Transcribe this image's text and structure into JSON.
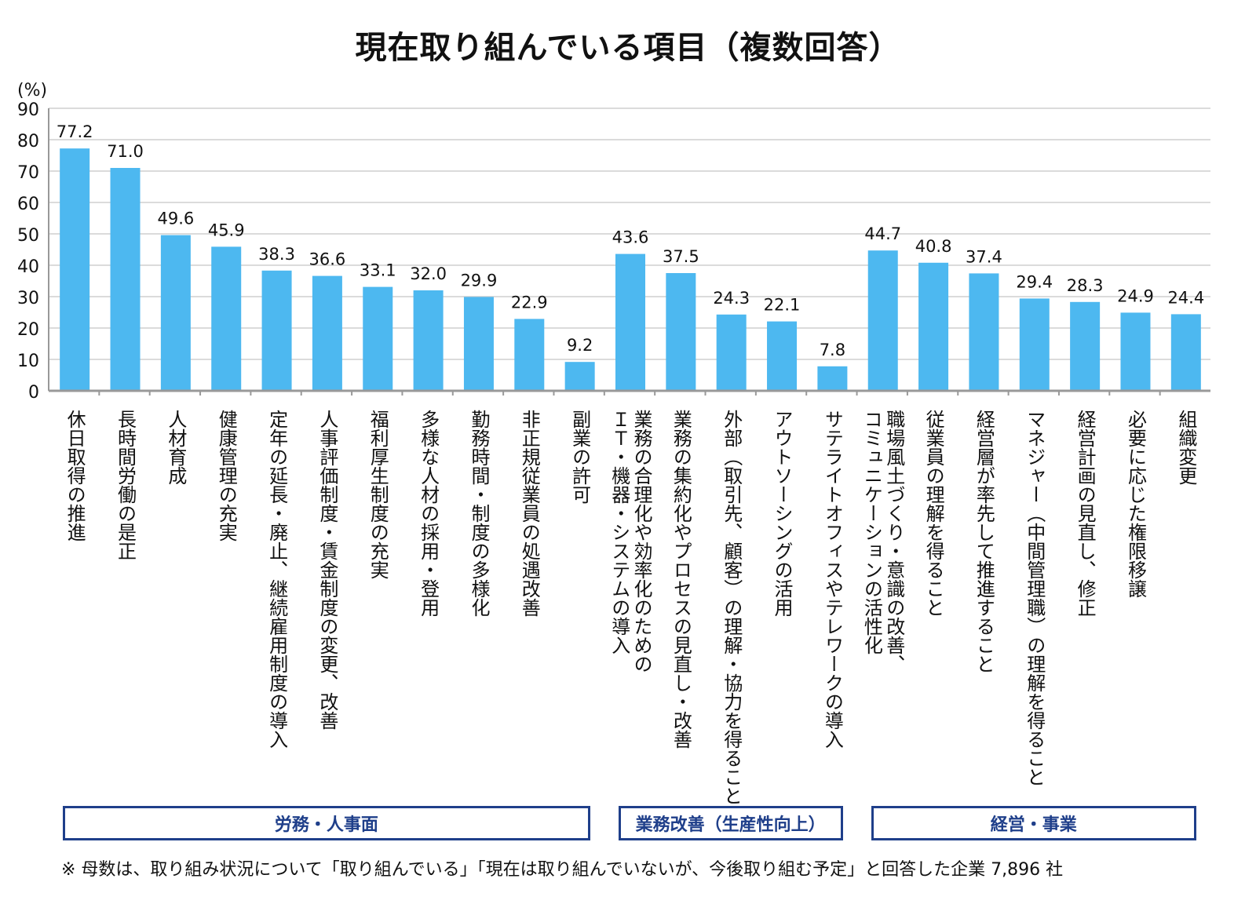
{
  "chart_data": {
    "type": "bar",
    "title": "現在取り組んでいる項目（複数回答）",
    "ylabel": "(%)",
    "ylim": [
      0,
      90
    ],
    "yticks": [
      "0",
      "10",
      "20",
      "30",
      "40",
      "50",
      "60",
      "70",
      "80",
      "90"
    ],
    "grid": true,
    "bar_color": "#4db8f0",
    "categories": [
      "休日取得の推進",
      "長時間労働の是正",
      "人材育成",
      "健康管理の充実",
      "定年の延長・廃止、継続雇用制度の導入",
      "人事評価制度・賃金制度の変更、改善",
      "福利厚生制度の充実",
      "多様な人材の採用・登用",
      "勤務時間・制度の多様化",
      "非正規従業員の処遇改善",
      "副業の許可",
      "業務の合理化や効率化のためのＩＴ・機器・システムの導入",
      "業務の集約化やプロセスの見直し・改善",
      "外部（取引先、顧客）の理解・協力を得ること",
      "アウトソーシングの活用",
      "サテライトオフィスやテレワークの導入",
      "職場風土づくり・意識の改善、コミュニケーションの活性化",
      "従業員の理解を得ること",
      "経営層が率先して推進すること",
      "マネジャー（中間管理職）の理解を得ること",
      "経営計画の見直し、修正",
      "必要に応じた権限移譲",
      "組織変更"
    ],
    "category_lines": [
      [
        "休日取得の推進"
      ],
      [
        "長時間労働の是正"
      ],
      [
        "人材育成"
      ],
      [
        "健康管理の充実"
      ],
      [
        "定年の延長・廃止、継続雇用制度の導入"
      ],
      [
        "人事評価制度・賃金制度の変更、改善"
      ],
      [
        "福利厚生制度の充実"
      ],
      [
        "多様な人材の採用・登用"
      ],
      [
        "勤務時間・制度の多様化"
      ],
      [
        "非正規従業員の処遇改善"
      ],
      [
        "副業の許可"
      ],
      [
        "業務の合理化や効率化のための",
        "ＩＴ・機器・システムの導入"
      ],
      [
        "業務の集約化やプロセスの見直し・改善"
      ],
      [
        "外部（取引先、顧客）の理解・協力を得ること"
      ],
      [
        "アウトソーシングの活用"
      ],
      [
        "サテライトオフィスやテレワークの導入"
      ],
      [
        "職場風土づくり・意識の改善、",
        "コミュニケーションの活性化"
      ],
      [
        "従業員の理解を得ること"
      ],
      [
        "経営層が率先して推進すること"
      ],
      [
        "マネジャー（中間管理職）の理解を得ること"
      ],
      [
        "経営計画の見直し、修正"
      ],
      [
        "必要に応じた権限移譲"
      ],
      [
        "組織変更"
      ]
    ],
    "values": [
      77.2,
      71.0,
      49.6,
      45.9,
      38.3,
      36.6,
      33.1,
      32.0,
      29.9,
      22.9,
      9.2,
      43.6,
      37.5,
      24.3,
      22.1,
      7.8,
      44.7,
      40.8,
      37.4,
      29.4,
      28.3,
      24.9,
      24.4
    ],
    "value_labels": [
      "77.2",
      "71.0",
      "49.6",
      "45.9",
      "38.3",
      "36.6",
      "33.1",
      "32.0",
      "29.9",
      "22.9",
      "9.2",
      "43.6",
      "37.5",
      "24.3",
      "22.1",
      "7.8",
      "44.7",
      "40.8",
      "37.4",
      "29.4",
      "28.3",
      "24.9",
      "24.4"
    ],
    "groups": [
      {
        "label": "労務・人事面",
        "first": 0,
        "last": 10
      },
      {
        "label": "業務改善（生産性向上）",
        "first": 11,
        "last": 15
      },
      {
        "label": "経営・事業",
        "first": 16,
        "last": 22
      }
    ]
  },
  "footnote": "※ 母数は、取り組み状況について「取り組んでいる」「現在は取り組んでいないが、今後取り組む予定」と回答した企業 7,896 社"
}
